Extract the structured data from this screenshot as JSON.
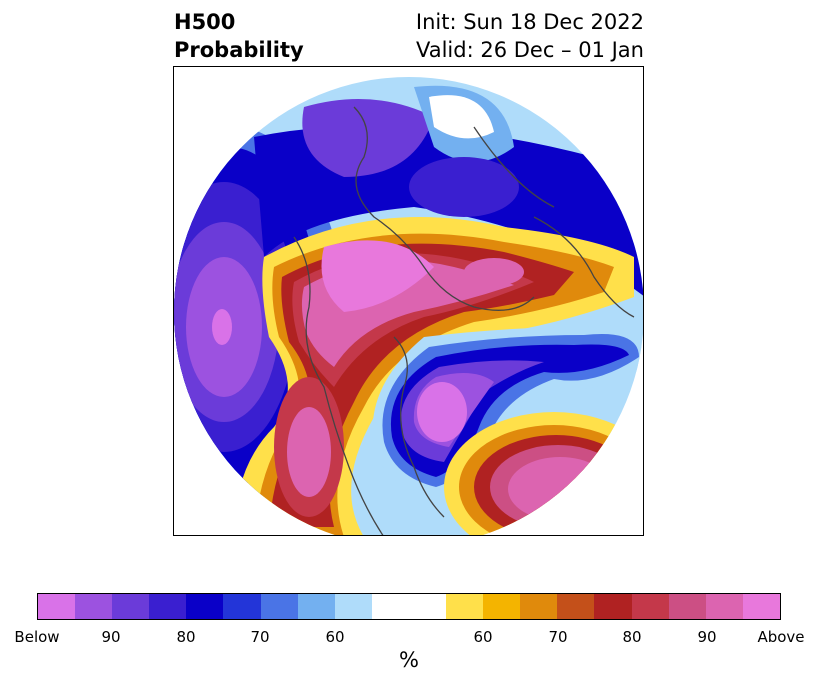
{
  "title": {
    "left_line1": "H500",
    "left_line2": "Probability",
    "right_line1": "Init: Sun 18 Dec 2022",
    "right_line2": "Valid: 26 Dec – 01 Jan"
  },
  "colorbar": {
    "colors": [
      "#d972e8",
      "#9c52e0",
      "#6b3bd9",
      "#3a1fd0",
      "#0a00c8",
      "#2335d8",
      "#4a74e6",
      "#73b0f0",
      "#afdcfa",
      "#ffffff",
      "#ffffff",
      "#ffe04a",
      "#f4b400",
      "#e08a0c",
      "#c4501a",
      "#b02222",
      "#c4384a",
      "#cc4f84",
      "#dc64b0",
      "#e878dc"
    ],
    "tick_labels": [
      "Below",
      "90",
      "80",
      "70",
      "60",
      "60",
      "70",
      "80",
      "90",
      "Above"
    ],
    "units": "%"
  },
  "palette": {
    "purple_light": "#d972e8",
    "purple": "#9c52e0",
    "blue_dark": "#0a00c8",
    "blue": "#4a74e6",
    "blue_light": "#afdcfa",
    "yellow": "#ffe04a",
    "orange": "#e08a0c",
    "red": "#b02222",
    "pink": "#dc64b0",
    "magenta": "#e878dc",
    "coastline": "#444444"
  }
}
